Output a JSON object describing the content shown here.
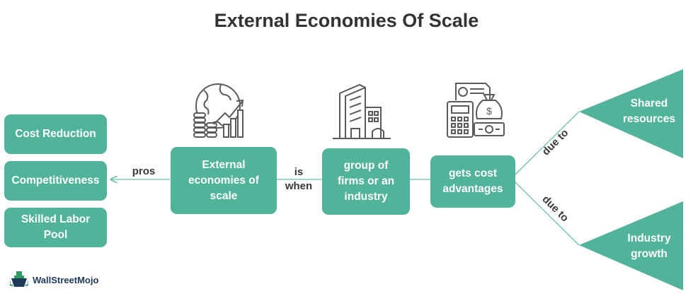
{
  "title": "External Economies Of Scale",
  "colors": {
    "accent": "#52b39b",
    "text": "#333333",
    "line": "#6cc1ab",
    "icon": "#5a5a5a"
  },
  "pros_list": [
    "Cost Reduction",
    "Competitiveness",
    "Skilled Labor Pool"
  ],
  "edges": {
    "pros": "pros",
    "is_when": "is when",
    "due_to_top": "due to",
    "due_to_bottom": "due to"
  },
  "nodes": {
    "external": "External economies of scale",
    "group": "group of firms or an industry",
    "gets": "gets cost advantages"
  },
  "reasons": {
    "shared": "Shared resources",
    "growth": "Industry growth"
  },
  "icons": [
    "globe-growth-icon",
    "buildings-icon",
    "finance-money-icon",
    "wallstreetmojo-logo-icon"
  ],
  "brand": "WallStreetMojo"
}
